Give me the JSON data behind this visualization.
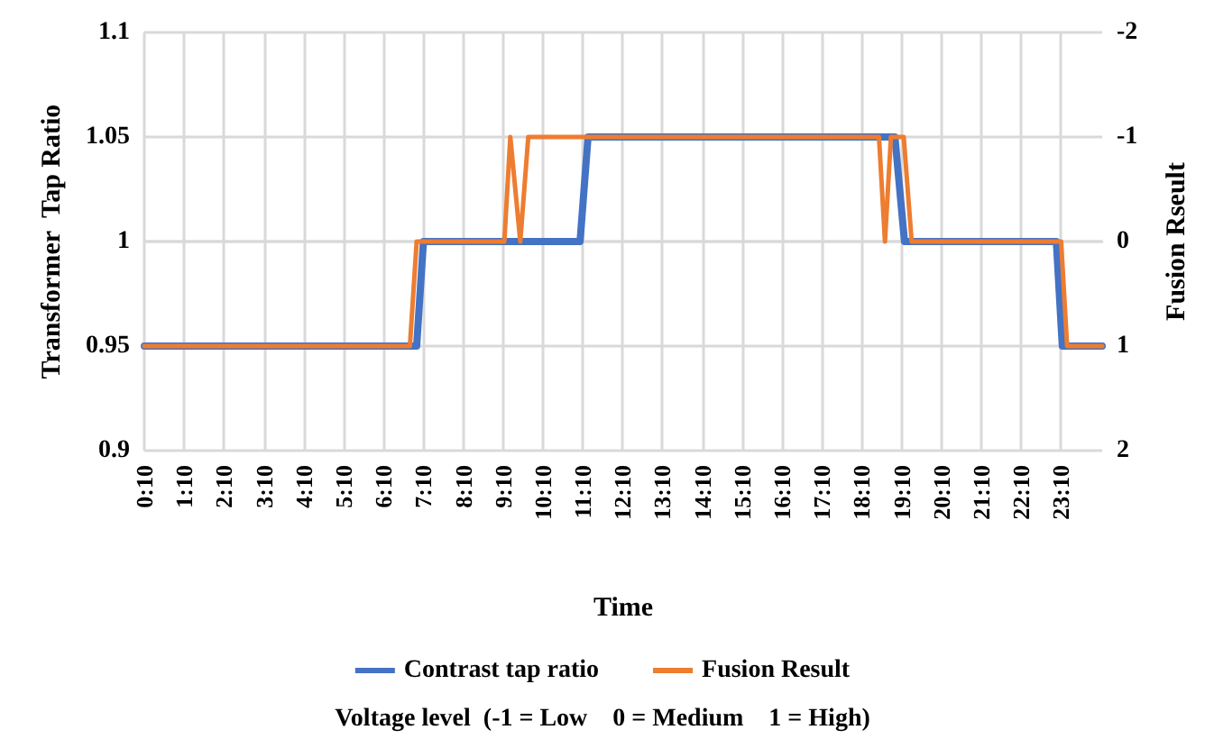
{
  "chart_data": {
    "type": "line",
    "xlabel": "Time",
    "ylabel": "Transformer  Tap Ratio",
    "y2label": "Fusion Rseult",
    "annotations": [
      "Voltage level  (-1 = Low    0 = Medium    1 = High)"
    ],
    "xlim": [
      0.1667,
      24.2
    ],
    "xticks": [
      {
        "value": 0.1667,
        "label": "0:10"
      },
      {
        "value": 1.1667,
        "label": "1:10"
      },
      {
        "value": 2.1667,
        "label": "2:10"
      },
      {
        "value": 3.1667,
        "label": "3:10"
      },
      {
        "value": 4.1667,
        "label": "4:10"
      },
      {
        "value": 5.1667,
        "label": "5:10"
      },
      {
        "value": 6.1667,
        "label": "6:10"
      },
      {
        "value": 7.1667,
        "label": "7:10"
      },
      {
        "value": 8.1667,
        "label": "8:10"
      },
      {
        "value": 9.1667,
        "label": "9:10"
      },
      {
        "value": 10.1667,
        "label": "10:10"
      },
      {
        "value": 11.1667,
        "label": "11:10"
      },
      {
        "value": 12.1667,
        "label": "12:10"
      },
      {
        "value": 13.1667,
        "label": "13:10"
      },
      {
        "value": 14.1667,
        "label": "14:10"
      },
      {
        "value": 15.1667,
        "label": "15:10"
      },
      {
        "value": 16.1667,
        "label": "16:10"
      },
      {
        "value": 17.1667,
        "label": "17:10"
      },
      {
        "value": 18.1667,
        "label": "18:10"
      },
      {
        "value": 19.1667,
        "label": "19:10"
      },
      {
        "value": 20.1667,
        "label": "20:10"
      },
      {
        "value": 21.1667,
        "label": "21:10"
      },
      {
        "value": 22.1667,
        "label": "22:10"
      },
      {
        "value": 23.1667,
        "label": "23:10"
      }
    ],
    "ylim": [
      0.9,
      1.1
    ],
    "yticks": [
      0.9,
      0.95,
      1,
      1.05,
      1.1
    ],
    "y2lim": [
      2,
      -2
    ],
    "y2ticks": [
      2,
      1,
      0,
      -1,
      -2
    ],
    "series": [
      {
        "name": "Contrast tap ratio",
        "color": "#4472c4",
        "x": [
          0.1667,
          7.0,
          7.17,
          11.1,
          11.3,
          19.0,
          19.24,
          23.05,
          23.2,
          24.2
        ],
        "values": [
          0.95,
          0.95,
          1,
          1,
          1.05,
          1.05,
          1,
          1,
          0.95,
          0.95
        ]
      },
      {
        "name": "Fusion Result",
        "color": "#ed7d31",
        "axis": "y2",
        "x": [
          0.1667,
          6.83,
          7.0,
          9.2,
          9.35,
          9.6,
          9.8,
          18.6,
          18.75,
          18.9,
          19.22,
          19.42,
          23.17,
          23.32,
          24.2
        ],
        "values": [
          1,
          1,
          0,
          0,
          -1,
          0,
          -1,
          -1,
          0,
          -1,
          -1,
          0,
          0,
          1,
          1
        ]
      }
    ],
    "grid": true,
    "legend": "bottom",
    "marker": "none",
    "line_style": "solid"
  }
}
